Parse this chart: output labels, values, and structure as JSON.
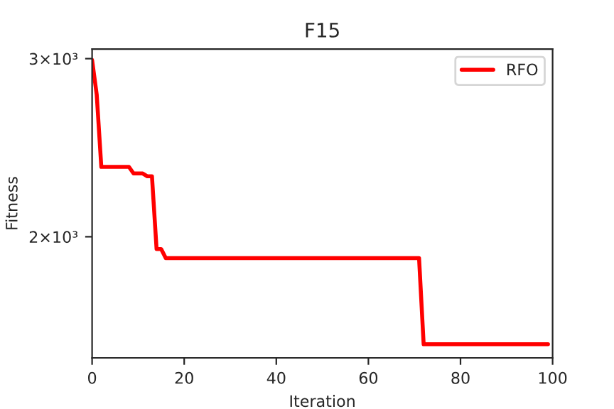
{
  "chart_data": {
    "type": "line",
    "title": "F15",
    "xlabel": "Iteration",
    "ylabel": "Fitness",
    "series": [
      {
        "name": "RFO",
        "color": "#ff0000",
        "x": [
          0,
          1,
          2,
          8,
          9,
          11,
          12,
          13,
          14,
          15,
          16,
          71,
          72,
          99
        ],
        "values": [
          2990,
          2765,
          2345,
          2345,
          2310,
          2310,
          2295,
          2295,
          1945,
          1945,
          1905,
          1905,
          1566,
          1566
        ]
      }
    ],
    "xlim": [
      0,
      100
    ],
    "xticks": [
      0,
      20,
      40,
      60,
      80,
      100
    ],
    "ylim": [
      1518,
      3066
    ],
    "yticks": [
      {
        "value": 2000,
        "label": "2×10³"
      },
      {
        "value": 3000,
        "label": "3×10³"
      }
    ],
    "log": "y",
    "grid": false,
    "legend": "top right",
    "marker": "none",
    "line_style": "solid"
  }
}
